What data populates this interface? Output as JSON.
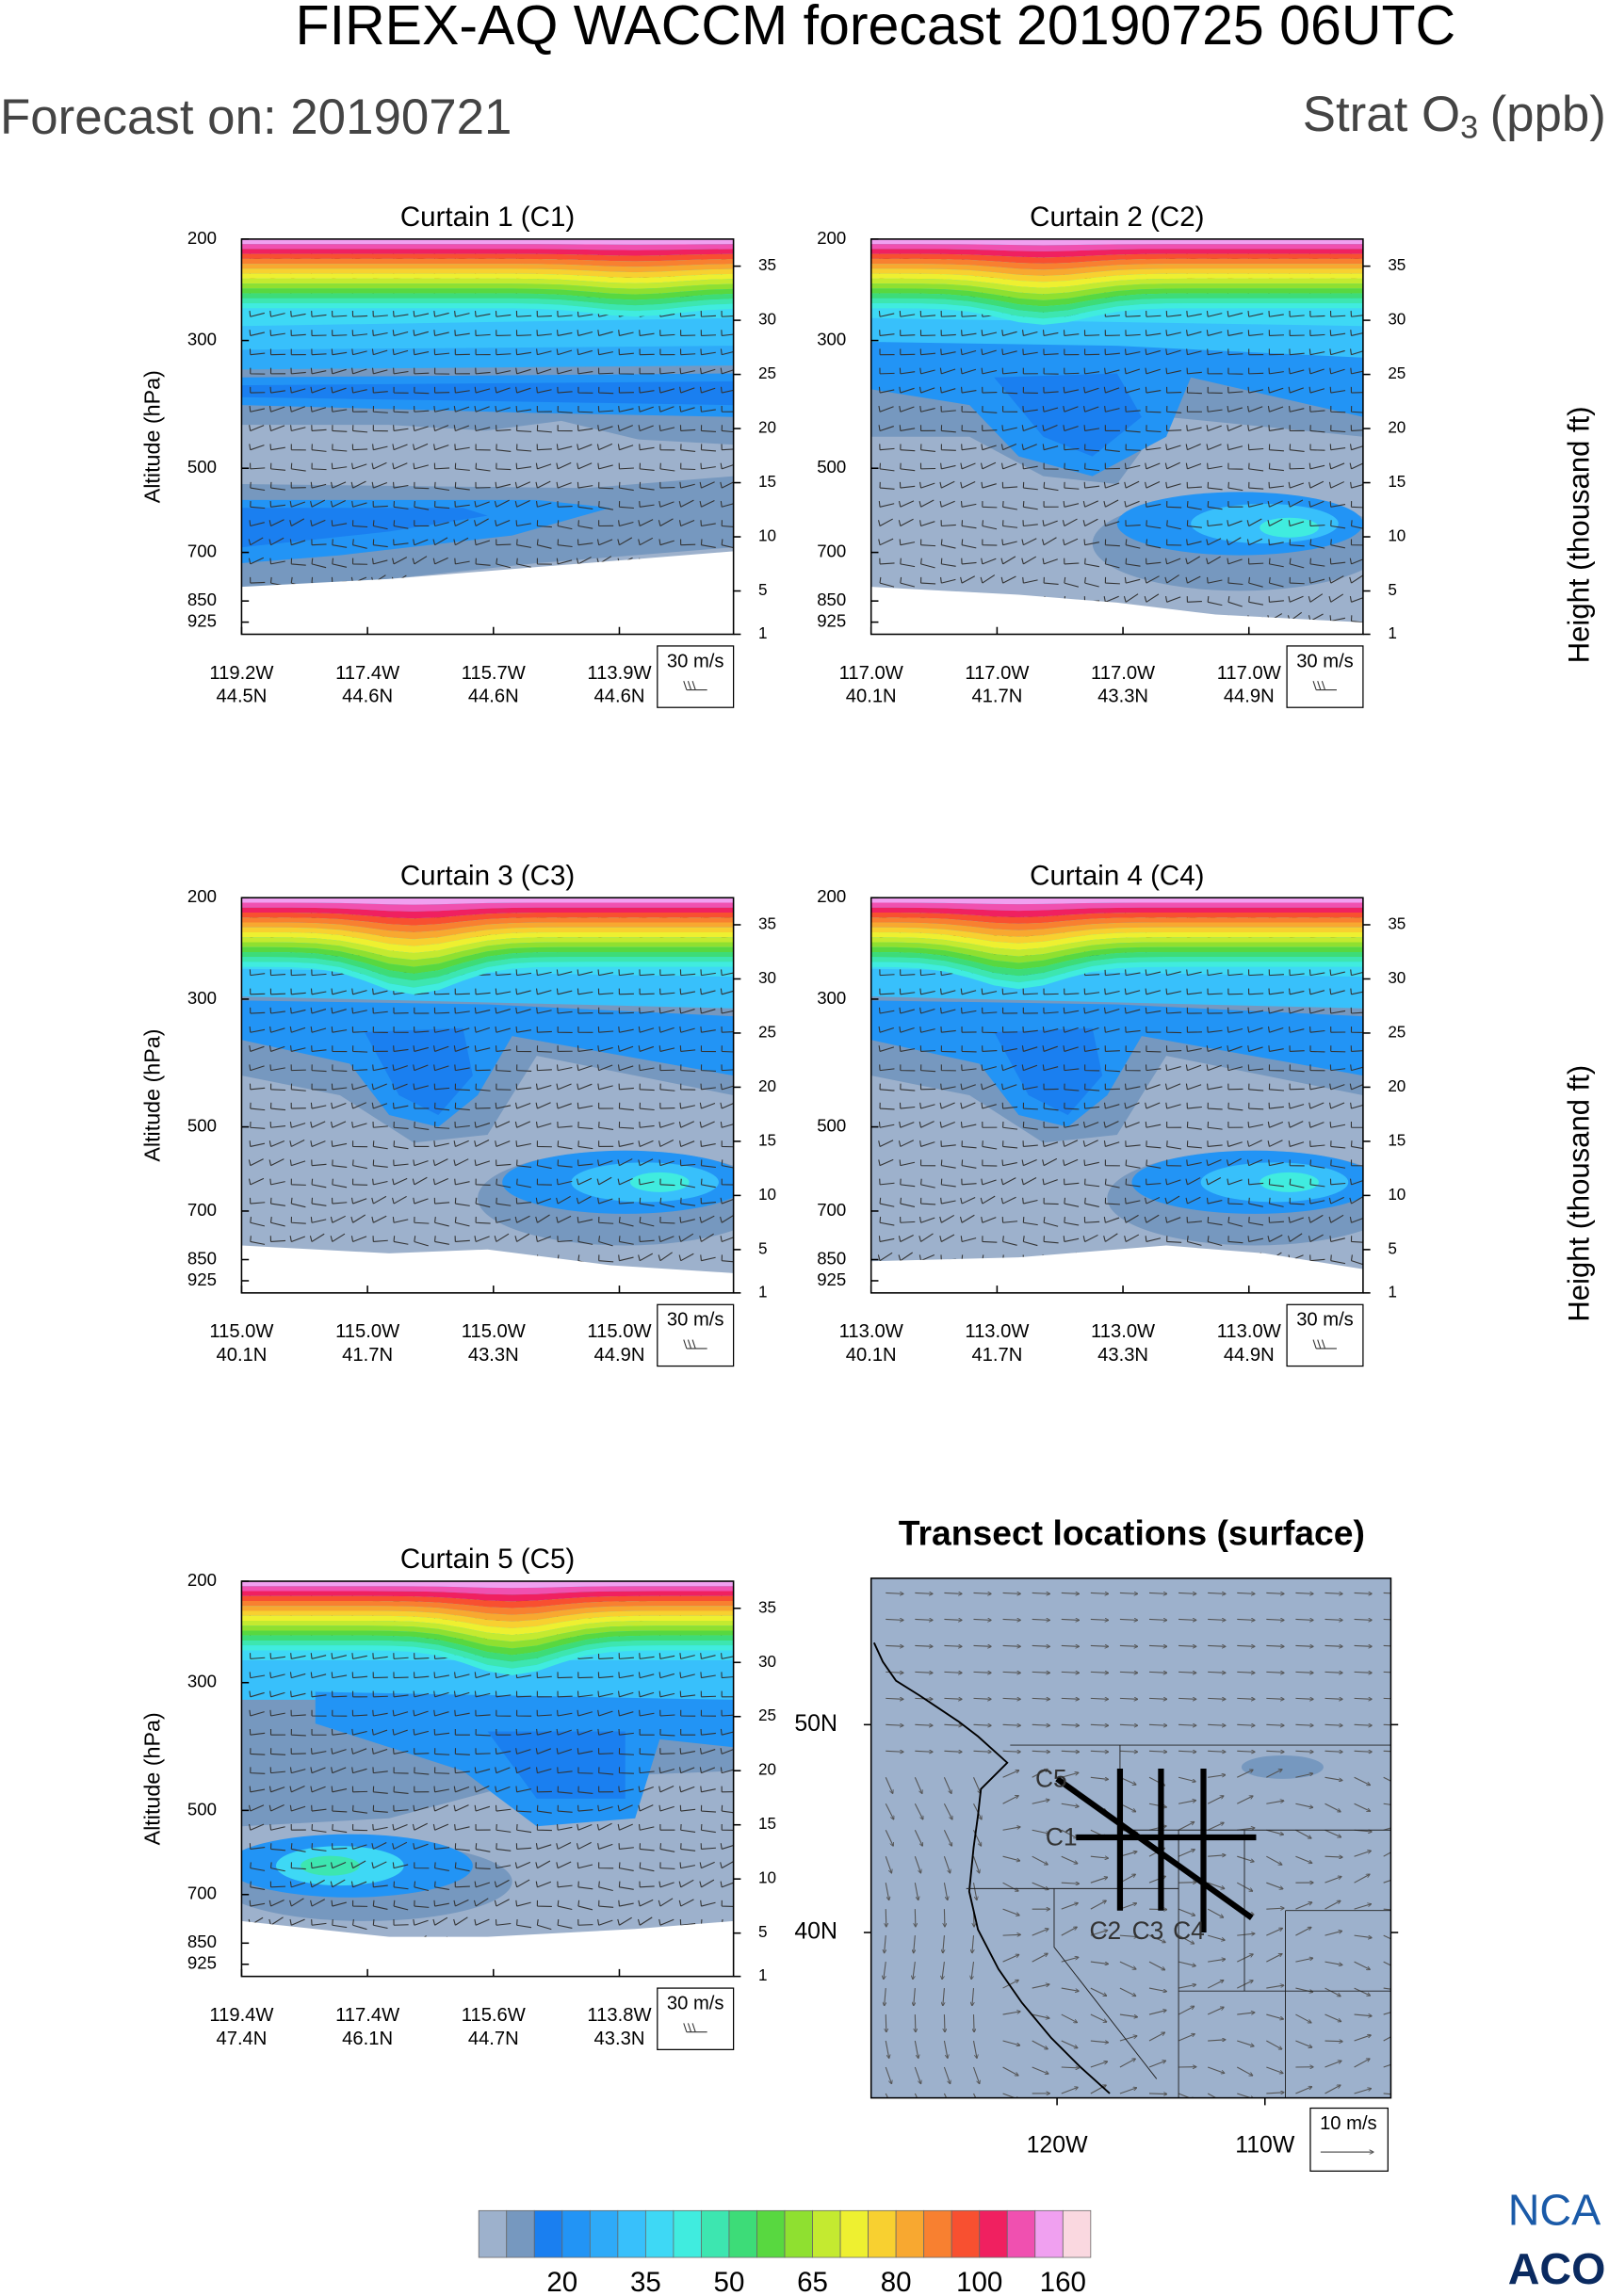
{
  "title": "FIREX-AQ WACCM forecast 20190725 06UTC",
  "forecast_on": "Forecast on: 20190721",
  "variable": {
    "name": "Strat O",
    "subscript": "3",
    "unit": "(ppb)"
  },
  "y_label": "Altitude (hPa)",
  "y2_label": "Height (thousand ft)",
  "log_pressure": true,
  "pressure_lim": [
    971,
    200
  ],
  "pressure_ticks": [
    200,
    300,
    500,
    700,
    850,
    925
  ],
  "height_lim": [
    1,
    37.5
  ],
  "height_ticks": [
    1,
    5,
    10,
    15,
    20,
    25,
    30,
    35
  ],
  "wind_key": "30 m/s",
  "panels": [
    {
      "title": "Curtain 1 (C1)",
      "x_labels": [
        [
          "119.2W",
          "44.5N"
        ],
        [
          "117.4W",
          "44.6N"
        ],
        [
          "115.7W",
          "44.6N"
        ],
        [
          "113.9W",
          "44.6N"
        ]
      ]
    },
    {
      "title": "Curtain 2 (C2)",
      "x_labels": [
        [
          "117.0W",
          "40.1N"
        ],
        [
          "117.0W",
          "41.7N"
        ],
        [
          "117.0W",
          "43.3N"
        ],
        [
          "117.0W",
          "44.9N"
        ]
      ]
    },
    {
      "title": "Curtain 3 (C3)",
      "x_labels": [
        [
          "115.0W",
          "40.1N"
        ],
        [
          "115.0W",
          "41.7N"
        ],
        [
          "115.0W",
          "43.3N"
        ],
        [
          "115.0W",
          "44.9N"
        ]
      ]
    },
    {
      "title": "Curtain 4 (C4)",
      "x_labels": [
        [
          "113.0W",
          "40.1N"
        ],
        [
          "113.0W",
          "41.7N"
        ],
        [
          "113.0W",
          "43.3N"
        ],
        [
          "113.0W",
          "44.9N"
        ]
      ]
    },
    {
      "title": "Curtain 5 (C5)",
      "x_labels": [
        [
          "119.4W",
          "47.4N"
        ],
        [
          "117.4W",
          "46.1N"
        ],
        [
          "115.6W",
          "44.7N"
        ],
        [
          "113.8W",
          "43.3N"
        ]
      ]
    }
  ],
  "map": {
    "title": "Transect locations (surface)",
    "lat_labels": [
      "50N",
      "40N"
    ],
    "lon_labels": [
      "120W",
      "110W"
    ],
    "curtain_labels": [
      "C1",
      "C2",
      "C3",
      "C4",
      "C5"
    ],
    "wind_key": "10 m/s"
  },
  "colorbar": {
    "labels": [
      20,
      35,
      50,
      65,
      80,
      100,
      160
    ],
    "colors": [
      "#9db1cc",
      "#7698bf",
      "#1a7ff0",
      "#2294f5",
      "#2eaaf8",
      "#38c0fb",
      "#3ed8f5",
      "#40ecdf",
      "#3de6b0",
      "#3ddc78",
      "#58d840",
      "#8fe030",
      "#c4ea30",
      "#eef030",
      "#f8d030",
      "#f8a830",
      "#f88030",
      "#f85030",
      "#f02060",
      "#f050b0",
      "#f0a0f0",
      "#fad8e0"
    ]
  },
  "logo": [
    "NCA",
    "ACO"
  ]
}
